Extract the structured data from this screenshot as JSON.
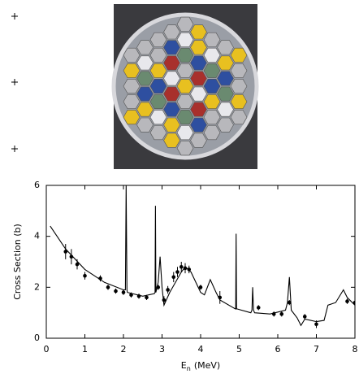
{
  "chart_data": {
    "type": "line",
    "ylabel": "Cross Section (b)",
    "xlabel_symbol": "E",
    "xlabel_subscript": "n",
    "xlabel_unit": "(MeV)",
    "xlim": [
      0,
      8
    ],
    "xticks": [
      0,
      1,
      2,
      3,
      4,
      5,
      6,
      7,
      8
    ],
    "ylim": [
      0,
      6
    ],
    "yticks": [
      0,
      2,
      4,
      6
    ],
    "series": [
      {
        "type": "line",
        "color": "#000000",
        "x": [
          0.1,
          0.5,
          1.0,
          1.5,
          2.0,
          2.05,
          2.07,
          2.09,
          2.1,
          2.5,
          2.8,
          2.82,
          2.83,
          2.84,
          2.9,
          2.95,
          3.0,
          3.05,
          3.2,
          3.5,
          3.6,
          3.75,
          4.0,
          4.1,
          4.25,
          4.4,
          4.5,
          4.9,
          4.91,
          4.92,
          4.93,
          4.95,
          5.3,
          5.33,
          5.35,
          5.37,
          5.4,
          5.8,
          6.2,
          6.25,
          6.3,
          6.35,
          6.5,
          6.6,
          6.7,
          7.0,
          7.2,
          7.3,
          7.5,
          7.7,
          7.8,
          8.0
        ],
        "values": [
          4.4,
          3.5,
          2.7,
          2.2,
          1.9,
          1.9,
          6,
          1.9,
          1.8,
          1.65,
          1.75,
          1.8,
          5.2,
          1.8,
          2.2,
          3.2,
          2.0,
          1.3,
          1.8,
          2.6,
          2.8,
          2.6,
          1.8,
          1.7,
          2.3,
          1.8,
          1.5,
          1.15,
          1.15,
          4.1,
          1.15,
          1.15,
          1.0,
          1.1,
          2.0,
          1.1,
          1.0,
          0.95,
          1.1,
          1.4,
          2.4,
          1.1,
          0.8,
          0.5,
          0.75,
          0.65,
          0.7,
          1.3,
          1.4,
          1.9,
          1.6,
          1.3
        ]
      },
      {
        "type": "scatter",
        "color": "#000000",
        "x": [
          0.5,
          0.65,
          0.8,
          1.0,
          1.4,
          1.6,
          1.8,
          2.0,
          2.2,
          2.4,
          2.6,
          2.9,
          3.05,
          3.15,
          3.3,
          3.4,
          3.5,
          3.6,
          3.7,
          4.0,
          4.5,
          5.5,
          5.9,
          6.1,
          6.3,
          6.7,
          7.0,
          7.8,
          8.0
        ],
        "values": [
          3.4,
          3.2,
          2.9,
          2.45,
          2.35,
          2.0,
          1.85,
          1.8,
          1.7,
          1.65,
          1.6,
          2.0,
          1.5,
          1.9,
          2.4,
          2.6,
          2.8,
          2.75,
          2.7,
          2.0,
          1.6,
          1.2,
          0.95,
          0.95,
          1.4,
          0.85,
          0.55,
          1.45,
          1.4
        ],
        "errors": [
          0.3,
          0.3,
          0.2,
          0.15,
          0.12,
          0.1,
          0.1,
          0.1,
          0.1,
          0.1,
          0.1,
          0.1,
          0.15,
          0.15,
          0.2,
          0.2,
          0.2,
          0.2,
          0.15,
          0.1,
          0.25,
          0.1,
          0.1,
          0.1,
          0.1,
          0.1,
          0.15,
          0.1,
          0.1
        ]
      }
    ]
  }
}
